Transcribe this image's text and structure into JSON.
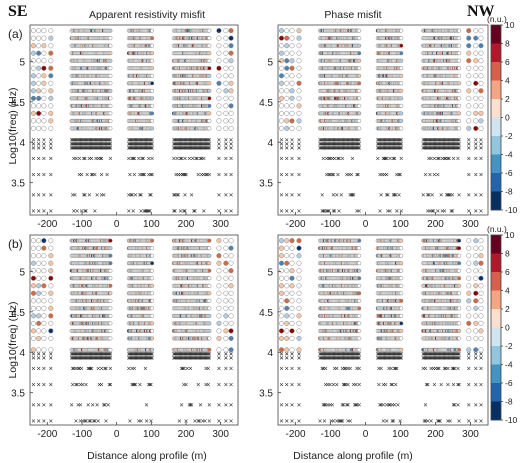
{
  "labels": {
    "se": "SE",
    "nw": "NW",
    "panel_a": "(a)",
    "panel_b": "(b)",
    "title_rho": "Apparent resistivity misfit",
    "title_phase": "Phase misfit",
    "ylabel": "Log10(freq) (Hz)",
    "xlabel": "Distance along profile (m)",
    "colorbar_unit": "(n.u.)"
  },
  "colors": {
    "neg_strong": "#08306b",
    "neg_mid": "#4f80b5",
    "neg_light": "#b3cde3",
    "zero": "#ffffff",
    "pos_light": "#f4c7a8",
    "pos_mid": "#d2693f",
    "pos_strong": "#8b0000",
    "marker_edge": "#888888",
    "cross": "#333333"
  },
  "chart_data": [
    {
      "type": "scatter",
      "panel": "(a)",
      "title": "Apparent resistivity misfit",
      "ylabel": "Log10(freq) (Hz)",
      "xlim": [
        -250,
        350
      ],
      "ylim": [
        3.1,
        5.45
      ],
      "xticks": [
        -200,
        -100,
        0,
        100,
        200,
        300
      ],
      "yticks": [
        3.5,
        4,
        4.5,
        5
      ],
      "xtick_labels": [
        "-200",
        "-100",
        "0",
        "100",
        "200",
        "300"
      ],
      "ytick_labels": [
        "3.5",
        "4",
        "4.5",
        "5"
      ],
      "cross_below_log10f": 4.05,
      "misfit_note": "circles coloured by normalised misfit; crosses mark missing data"
    },
    {
      "type": "scatter",
      "panel": "(a)",
      "title": "Phase misfit",
      "xlim": [
        -250,
        350
      ],
      "ylim": [
        3.1,
        5.45
      ],
      "xticks": [
        -200,
        -100,
        0,
        100,
        200,
        300
      ],
      "yticks": [
        3.5,
        4,
        4.5,
        5
      ],
      "xtick_labels": [
        "-200",
        "-100",
        "0",
        "100",
        "200",
        "300"
      ],
      "ytick_labels": [
        "3.5",
        "4",
        "4.5",
        "5"
      ],
      "cross_below_log10f": 4.05
    },
    {
      "type": "scatter",
      "panel": "(b)",
      "ylabel": "Log10(freq) (Hz)",
      "xlabel": "Distance along profile (m)",
      "xlim": [
        -250,
        350
      ],
      "ylim": [
        3.1,
        5.45
      ],
      "xticks": [
        -200,
        -100,
        0,
        100,
        200,
        300
      ],
      "yticks": [
        3.5,
        4,
        4.5,
        5
      ],
      "xtick_labels": [
        "-200",
        "-100",
        "0",
        "100",
        "200",
        "300"
      ],
      "ytick_labels": [
        "3.5",
        "4",
        "4.5",
        "5"
      ],
      "cross_below_log10f": 4.0
    },
    {
      "type": "scatter",
      "panel": "(b)",
      "xlabel": "Distance along profile (m)",
      "xlim": [
        -250,
        350
      ],
      "ylim": [
        3.1,
        5.45
      ],
      "xticks": [
        -200,
        -100,
        0,
        100,
        200,
        300
      ],
      "yticks": [
        3.5,
        4,
        4.5,
        5
      ],
      "xtick_labels": [
        "-200",
        "-100",
        "0",
        "100",
        "200",
        "300"
      ],
      "ytick_labels": [
        "3.5",
        "4",
        "4.5",
        "5"
      ],
      "cross_below_log10f": 4.0
    }
  ],
  "colorbars": [
    {
      "unit": "(n.u.)",
      "range": [
        -10,
        10
      ],
      "ticks": [
        10,
        8,
        6,
        4,
        2,
        0,
        -2,
        -4,
        -6,
        -8,
        -10
      ]
    },
    {
      "unit": "(n.u.)",
      "range": [
        -10,
        10
      ],
      "ticks": [
        10,
        8,
        6,
        4,
        2,
        0,
        -2,
        -4,
        -6,
        -8,
        -10
      ]
    }
  ]
}
